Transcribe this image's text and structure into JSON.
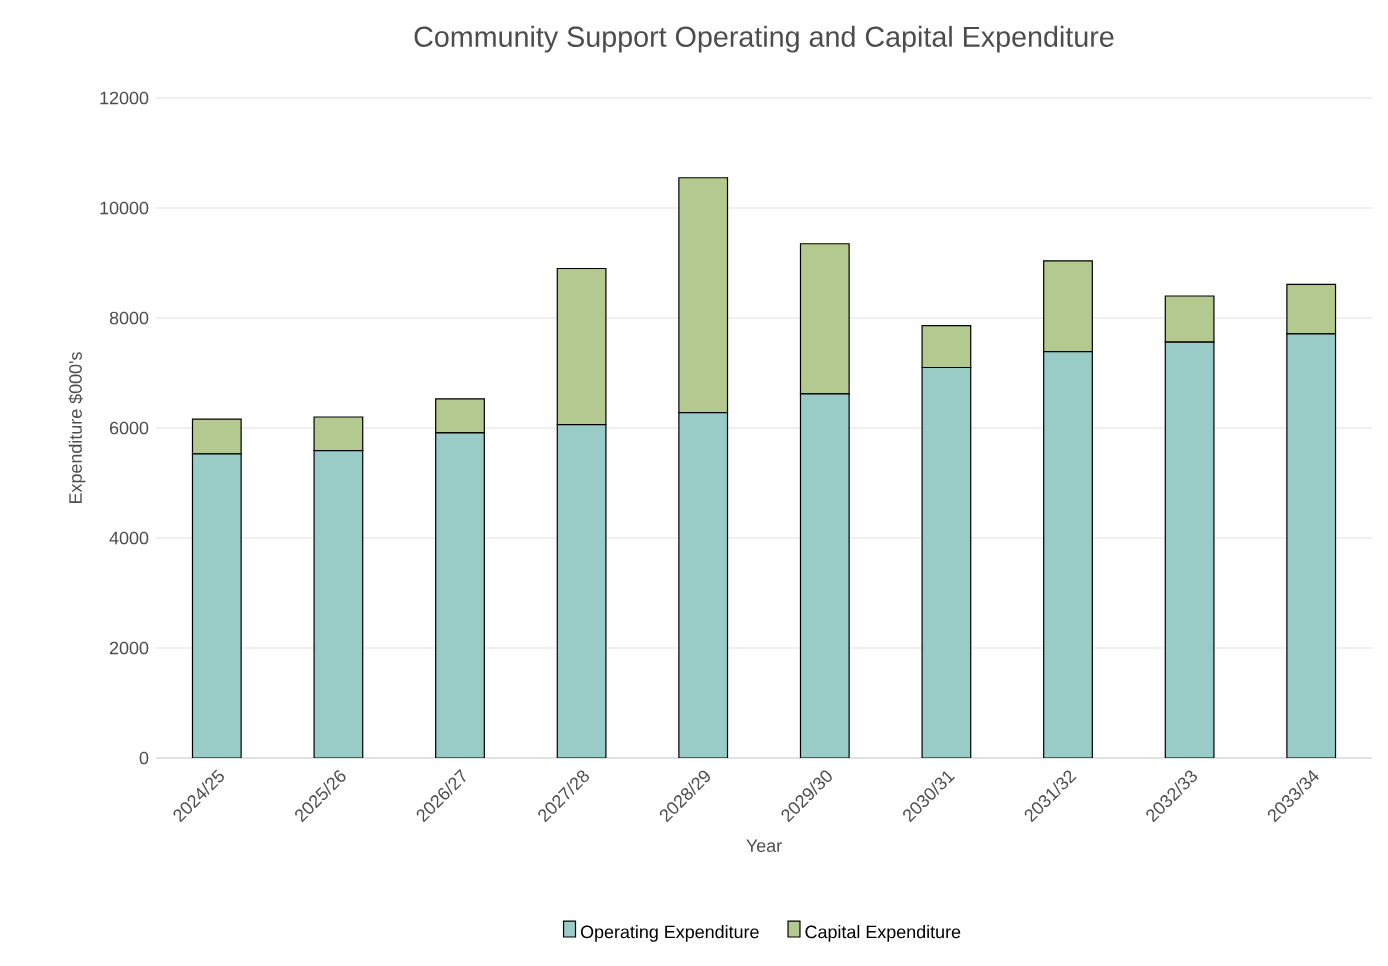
{
  "chart_data": {
    "type": "bar",
    "stacked": true,
    "title": "Community Support Operating and Capital Expenditure",
    "xlabel": "Year",
    "ylabel": "Expenditure $000's",
    "categories": [
      "2024/25",
      "2025/26",
      "2026/27",
      "2027/28",
      "2028/29",
      "2029/30",
      "2030/31",
      "2031/32",
      "2032/33",
      "2033/34"
    ],
    "series": [
      {
        "name": "Operating Expenditure",
        "color": "#99cbc7",
        "values": [
          5530,
          5590,
          5910,
          6060,
          6280,
          6620,
          7100,
          7390,
          7560,
          7710
        ]
      },
      {
        "name": "Capital Expenditure",
        "color": "#b3c98f",
        "values": [
          630,
          610,
          620,
          2840,
          4270,
          2730,
          760,
          1650,
          840,
          900
        ]
      }
    ],
    "ylim": [
      0,
      12000
    ],
    "yticks": [
      0,
      2000,
      4000,
      6000,
      8000,
      10000,
      12000
    ],
    "grid": "y",
    "legend": "bottom"
  }
}
